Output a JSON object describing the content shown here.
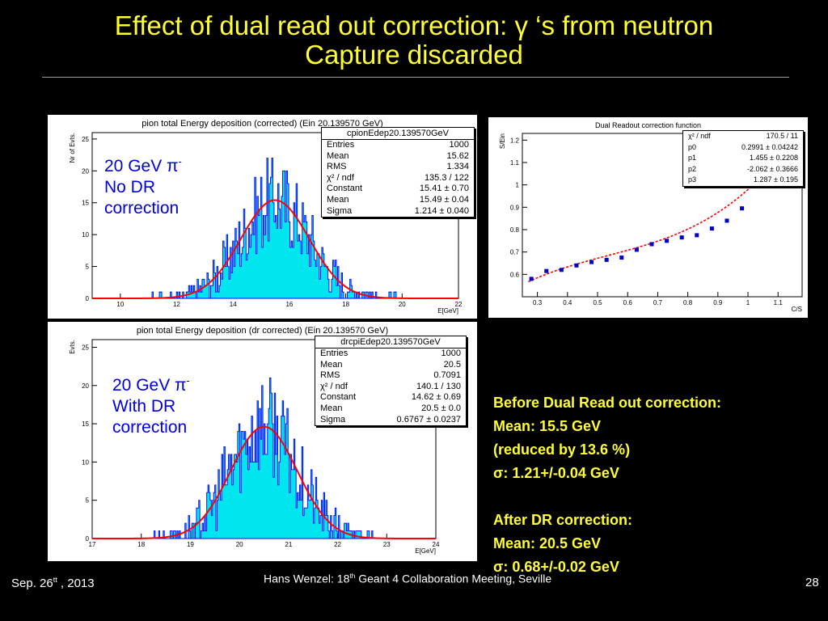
{
  "slide": {
    "title_line1": "Effect of dual read out correction: γ ‘s from neutron",
    "title_line2": "Capture discarded"
  },
  "panel1": {
    "title": "pion total Energy deposition (corrected) (Ein 20.139570 GeV)",
    "ylabel": "Nr of Evts.",
    "xlabel": "E[GeV]",
    "overlay": {
      "line1": "20 GeV π",
      "sup": "-",
      "line2": "No DR",
      "line3": "correction"
    },
    "stats": {
      "name": "cpionEdep20.139570GeV",
      "rows": [
        {
          "k": "Entries",
          "v": "1000"
        },
        {
          "k": "Mean",
          "v": "15.62"
        },
        {
          "k": "RMS",
          "v": "1.334"
        },
        {
          "k": "χ² / ndf",
          "v": "135.3 / 122"
        },
        {
          "k": "Constant",
          "v": "15.41 ± 0.70"
        },
        {
          "k": "Mean",
          "v": "15.49 ± 0.04"
        },
        {
          "k": "Sigma",
          "v": "1.214 ± 0.040"
        }
      ]
    }
  },
  "panel2": {
    "title": "pion total Energy deposition (dr corrected) (Ein 20.139570 GeV)",
    "ylabel": "Evts.",
    "xlabel": "E[GeV]",
    "overlay": {
      "line1": "20 GeV π",
      "sup": "-",
      "line2": "With DR",
      "line3": "correction"
    },
    "stats": {
      "name": "drcpiEdep20.139570GeV",
      "rows": [
        {
          "k": "Entries",
          "v": "1000"
        },
        {
          "k": "Mean",
          "v": "20.5"
        },
        {
          "k": "RMS",
          "v": "0.7091"
        },
        {
          "k": "χ² / ndf",
          "v": "140.1 / 130"
        },
        {
          "k": "Constant",
          "v": "14.62 ± 0.69"
        },
        {
          "k": "Mean",
          "v": "20.5 ± 0.0"
        },
        {
          "k": "Sigma",
          "v": "0.6767 ± 0.0237"
        }
      ]
    }
  },
  "panel3": {
    "title": "Dual Readout correction function",
    "ylabel": "S/Ein",
    "xlabel": "C/S",
    "stats": {
      "rows": [
        {
          "k": "χ² / ndf",
          "v": "170.5 / 11"
        },
        {
          "k": "p0",
          "v": "0.2991 ± 0.04242"
        },
        {
          "k": "p1",
          "v": "1.455 ± 0.2208"
        },
        {
          "k": "p2",
          "v": "-2.062 ± 0.3666"
        },
        {
          "k": "p3",
          "v": "1.287 ± 0.195"
        }
      ]
    }
  },
  "notes": {
    "before_title": "Before Dual Read out correction:",
    "before_mean": "Mean: 15.5 GeV",
    "before_reduced": "(reduced by 13.6 %)",
    "before_sigma_sym": "σ",
    "before_sigma": ": 1.21+/-0.04 GeV",
    "after_title": "After DR correction:",
    "after_mean": "Mean: 20.5 GeV",
    "after_sigma_sym": "σ",
    "after_sigma": ": 0.68+/-0.02 GeV"
  },
  "footer": {
    "date_main": "Sep.  26",
    "date_sup": "tt",
    "date_year": " , 2013",
    "author": "Hans Wenzel:    18",
    "author_sup": "th",
    "author_rest": " Geant 4 Collaboration Meeting, Seville",
    "page": "28"
  },
  "chart_data": [
    {
      "type": "histogram",
      "title": "pion total Energy deposition (corrected) (Ein 20.139570 GeV)",
      "xlabel": "E[GeV]",
      "ylabel": "Nr of Evts.",
      "xlim": [
        9,
        22
      ],
      "ylim": [
        0,
        26
      ],
      "xticks": [
        10,
        12,
        14,
        16,
        18,
        20,
        22
      ],
      "yticks": [
        0,
        5,
        10,
        15,
        20,
        25
      ],
      "fill_color": "#00e5ee",
      "line_color": "#0000ff",
      "fit": {
        "type": "gaus",
        "constant": 15.41,
        "mean": 15.49,
        "sigma": 1.214,
        "color": "#ff0000"
      }
    },
    {
      "type": "histogram",
      "title": "pion total Energy deposition (dr corrected) (Ein 20.139570 GeV)",
      "xlabel": "E[GeV]",
      "ylabel": "Evts.",
      "xlim": [
        17,
        24
      ],
      "ylim": [
        0,
        26
      ],
      "xticks": [
        17,
        18,
        19,
        20,
        21,
        22,
        23,
        24
      ],
      "yticks": [
        0,
        5,
        10,
        15,
        20,
        25
      ],
      "fill_color": "#00e5ee",
      "line_color": "#0000ff",
      "fit": {
        "type": "gaus",
        "constant": 14.62,
        "mean": 20.5,
        "sigma": 0.6767,
        "color": "#ff0000"
      }
    },
    {
      "type": "scatter",
      "title": "Dual Readout correction function",
      "xlabel": "C/S",
      "ylabel": "S/Ein",
      "xlim": [
        0.25,
        1.18
      ],
      "ylim": [
        0.5,
        1.23
      ],
      "xticks": [
        0.3,
        0.4,
        0.5,
        0.6,
        0.7,
        0.8,
        0.9,
        1.0,
        1.1
      ],
      "yticks": [
        0.6,
        0.7,
        0.8,
        0.9,
        1.0,
        1.1,
        1.2
      ],
      "points": [
        {
          "x": 0.28,
          "y": 0.58
        },
        {
          "x": 0.33,
          "y": 0.615
        },
        {
          "x": 0.38,
          "y": 0.62
        },
        {
          "x": 0.43,
          "y": 0.64
        },
        {
          "x": 0.48,
          "y": 0.655
        },
        {
          "x": 0.53,
          "y": 0.665
        },
        {
          "x": 0.58,
          "y": 0.675
        },
        {
          "x": 0.63,
          "y": 0.71
        },
        {
          "x": 0.68,
          "y": 0.735
        },
        {
          "x": 0.73,
          "y": 0.75
        },
        {
          "x": 0.78,
          "y": 0.765
        },
        {
          "x": 0.83,
          "y": 0.775
        },
        {
          "x": 0.88,
          "y": 0.805
        },
        {
          "x": 0.93,
          "y": 0.84
        },
        {
          "x": 0.98,
          "y": 0.895
        }
      ],
      "point_color": "#0000cc",
      "fit": {
        "type": "pol3",
        "p0": 0.2991,
        "p1": 1.455,
        "p2": -2.062,
        "p3": 1.287,
        "color": "#ff0000"
      }
    }
  ]
}
